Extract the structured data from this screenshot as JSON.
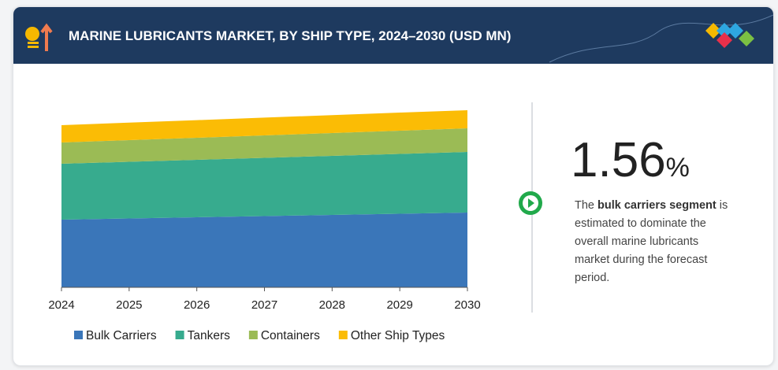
{
  "chart_data": {
    "type": "stacked_area",
    "title": "MARINE LUBRICANTS MARKET, BY SHIP TYPE, 2024–2030 (USD MN)",
    "x": [
      2024,
      2025,
      2026,
      2027,
      2028,
      2029,
      2030
    ],
    "xlim": [
      2024,
      2030
    ],
    "xticks": [
      2024,
      2025,
      2026,
      2027,
      2028,
      2029,
      2030
    ],
    "ylim": [
      0,
      2500
    ],
    "series": [
      {
        "name": "Bulk Carriers",
        "color": "#3a76b9",
        "values": [
          860,
          875,
          890,
          905,
          920,
          935,
          950
        ]
      },
      {
        "name": "Tankers",
        "color": "#37ab8e",
        "values": [
          710,
          720,
          730,
          740,
          750,
          760,
          770
        ]
      },
      {
        "name": "Containers",
        "color": "#9bbb55",
        "values": [
          270,
          275,
          280,
          285,
          290,
          295,
          300
        ]
      },
      {
        "name": "Other Ship Types",
        "color": "#fbbc05",
        "values": [
          220,
          222,
          224,
          226,
          228,
          230,
          230
        ]
      }
    ]
  },
  "highlight": {
    "value": "1.56",
    "unit": "%",
    "description": [
      "The ",
      "bulk carriers segment",
      " is estimated to dominate the overall marine lubricants market during the forecast period."
    ]
  }
}
